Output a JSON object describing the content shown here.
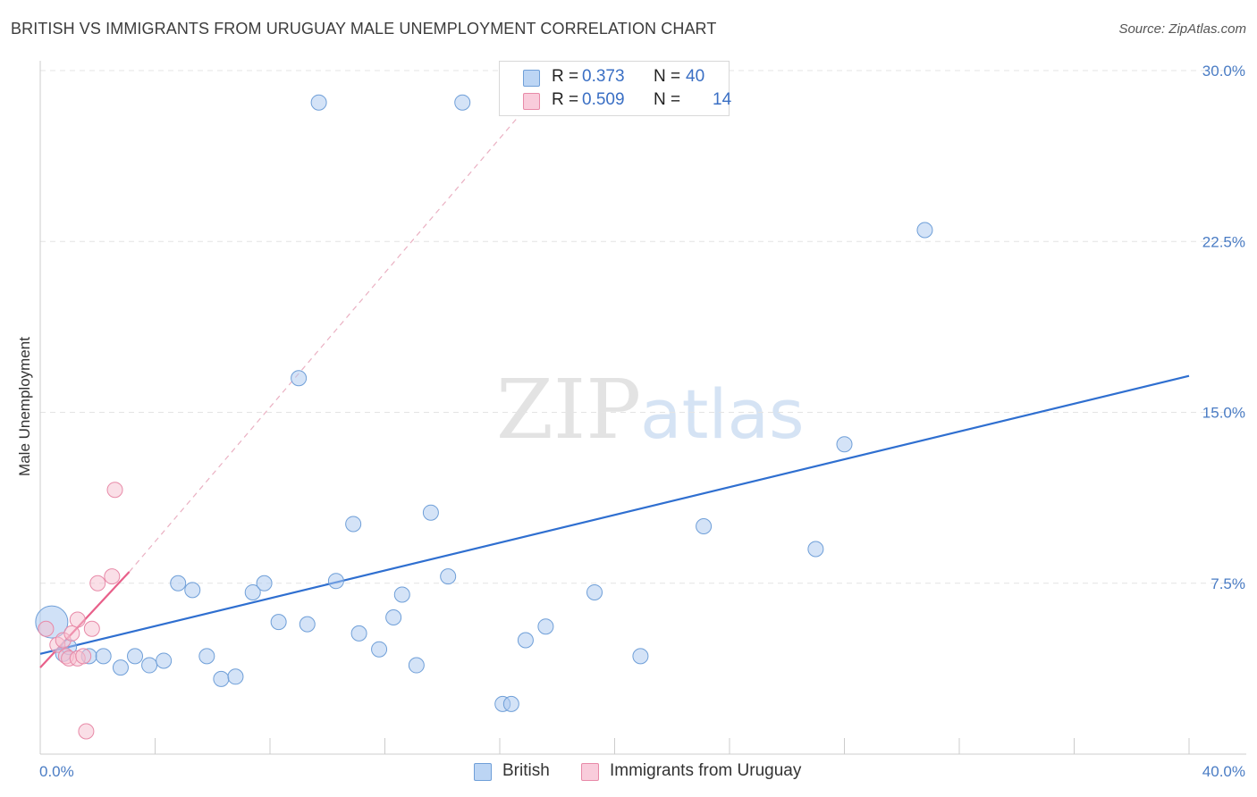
{
  "chart_data": {
    "type": "scatter",
    "title": "BRITISH VS IMMIGRANTS FROM URUGUAY MALE UNEMPLOYMENT CORRELATION CHART",
    "source": "Source: ZipAtlas.com",
    "ylabel": "Male Unemployment",
    "xlabel": "",
    "xlim": [
      0,
      40
    ],
    "ylim": [
      0,
      30
    ],
    "y_ticks": [
      {
        "value": 7.5,
        "label": "7.5%"
      },
      {
        "value": 15.0,
        "label": "15.0%"
      },
      {
        "value": 22.5,
        "label": "22.5%"
      },
      {
        "value": 30.0,
        "label": "30.0%"
      }
    ],
    "x_tick_labels": {
      "min": "0.0%",
      "max": "40.0%"
    },
    "x_minor_ticks": [
      4,
      8,
      12,
      16,
      20,
      24,
      28,
      32,
      36,
      40
    ],
    "grid": true,
    "watermark": {
      "zip": "ZIP",
      "atlas": "atlas"
    },
    "series": [
      {
        "name": "British",
        "color": "#a9c8f0",
        "edge": "#6f9fd8",
        "line_color": "#2f6fd0",
        "R": "0.373",
        "N": "40",
        "trend": {
          "x0": 0,
          "y0": 4.4,
          "x1": 40,
          "y1": 16.6
        },
        "points": [
          [
            0.4,
            5.8
          ],
          [
            0.8,
            4.4
          ],
          [
            1.0,
            4.7
          ],
          [
            1.7,
            4.3
          ],
          [
            2.2,
            4.3
          ],
          [
            2.8,
            3.8
          ],
          [
            3.3,
            4.3
          ],
          [
            3.8,
            3.9
          ],
          [
            4.3,
            4.1
          ],
          [
            4.8,
            7.5
          ],
          [
            5.3,
            7.2
          ],
          [
            5.8,
            4.3
          ],
          [
            6.3,
            3.3
          ],
          [
            6.8,
            3.4
          ],
          [
            7.4,
            7.1
          ],
          [
            7.8,
            7.5
          ],
          [
            8.3,
            5.8
          ],
          [
            9.0,
            16.5
          ],
          [
            9.3,
            5.7
          ],
          [
            9.7,
            28.6
          ],
          [
            10.3,
            7.6
          ],
          [
            10.9,
            10.1
          ],
          [
            11.1,
            5.3
          ],
          [
            11.8,
            4.6
          ],
          [
            12.3,
            6.0
          ],
          [
            12.6,
            7.0
          ],
          [
            13.1,
            3.9
          ],
          [
            13.6,
            10.6
          ],
          [
            14.2,
            7.8
          ],
          [
            14.7,
            28.6
          ],
          [
            16.1,
            2.2
          ],
          [
            16.4,
            2.2
          ],
          [
            16.9,
            5.0
          ],
          [
            17.6,
            5.6
          ],
          [
            19.3,
            7.1
          ],
          [
            20.9,
            4.3
          ],
          [
            23.1,
            10.0
          ],
          [
            27.0,
            9.0
          ],
          [
            28.0,
            13.6
          ],
          [
            30.8,
            23.0
          ]
        ]
      },
      {
        "name": "Immigrants from Uruguay",
        "color": "#f6bfd0",
        "edge": "#e88aa8",
        "line_color": "#e8608a",
        "R": "0.509",
        "N": "14",
        "trend": {
          "x0": 0,
          "y0": 3.8,
          "x1": 3.1,
          "y1": 8.0
        },
        "trend_ext": {
          "x0": 3.1,
          "y0": 8.0,
          "x1": 17.0,
          "y1": 28.5
        },
        "points": [
          [
            0.2,
            5.5
          ],
          [
            0.6,
            4.8
          ],
          [
            0.8,
            5.0
          ],
          [
            0.9,
            4.3
          ],
          [
            1.0,
            4.2
          ],
          [
            1.1,
            5.3
          ],
          [
            1.3,
            4.2
          ],
          [
            1.3,
            5.9
          ],
          [
            1.5,
            4.3
          ],
          [
            1.6,
            1.0
          ],
          [
            1.8,
            5.5
          ],
          [
            2.0,
            7.5
          ],
          [
            2.5,
            7.8
          ],
          [
            2.6,
            11.6
          ]
        ]
      }
    ]
  }
}
